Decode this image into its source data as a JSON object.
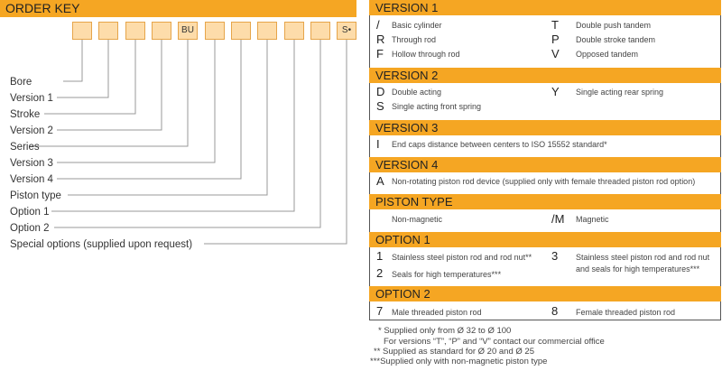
{
  "order_key": {
    "title": "ORDER KEY",
    "boxes": [
      "",
      "",
      "",
      "",
      "BU",
      "",
      "",
      "",
      "",
      "",
      "S•"
    ],
    "labels": [
      "Bore",
      "Version 1",
      "Stroke",
      "Version 2",
      "Series",
      "Version 3",
      "Version 4",
      "Piston type",
      "Option 1",
      "Option 2",
      "Special options (supplied upon request)"
    ]
  },
  "version1": {
    "title": "VERSION 1",
    "items": [
      {
        "code": "/",
        "desc": "Basic cylinder"
      },
      {
        "code": "R",
        "desc": "Through rod"
      },
      {
        "code": "F",
        "desc": "Hollow through rod"
      },
      {
        "code": "T",
        "desc": "Double push tandem"
      },
      {
        "code": "P",
        "desc": "Double stroke tandem"
      },
      {
        "code": "V",
        "desc": "Opposed tandem"
      }
    ]
  },
  "version2": {
    "title": "VERSION 2",
    "items": [
      {
        "code": "D",
        "desc": "Double acting"
      },
      {
        "code": "S",
        "desc": "Single acting front spring"
      },
      {
        "code": "Y",
        "desc": "Single acting rear spring"
      }
    ]
  },
  "version3": {
    "title": "VERSION 3",
    "items": [
      {
        "code": "I",
        "desc": "End caps distance between centers  to ISO 15552 standard*"
      }
    ]
  },
  "version4": {
    "title": "VERSION 4",
    "items": [
      {
        "code": "A",
        "desc": "Non-rotating piston rod device (supplied only with female threaded piston rod option)"
      }
    ]
  },
  "piston_type": {
    "title": "PISTON TYPE",
    "items": [
      {
        "code": "",
        "desc": "Non-magnetic"
      },
      {
        "code": "/M",
        "desc": "Magnetic"
      }
    ]
  },
  "option1": {
    "title": "OPTION 1",
    "items": [
      {
        "code": "1",
        "desc": "Stainless steel piston rod and rod nut**"
      },
      {
        "code": "2",
        "desc": "Seals for high temperatures***"
      },
      {
        "code": "3",
        "desc_line1": "Stainless steel piston rod and rod nut",
        "desc_line2": "and seals for high temperatures***"
      }
    ]
  },
  "option2": {
    "title": "OPTION 2",
    "items": [
      {
        "code": "7",
        "desc": "Male threaded piston rod"
      },
      {
        "code": "8",
        "desc": "Female threaded piston rod"
      }
    ]
  },
  "footnotes": [
    "* Supplied only from Ø 32 to Ø 100",
    "For versions “T”, “P” and “V” contact our commercial office",
    "** Supplied as standard for Ø 20 and Ø 25",
    "***Supplied only with non-magnetic piston type"
  ],
  "colors": {
    "accent": "#f5a623",
    "box_fill": "#fddcaa",
    "line": "#999999"
  }
}
